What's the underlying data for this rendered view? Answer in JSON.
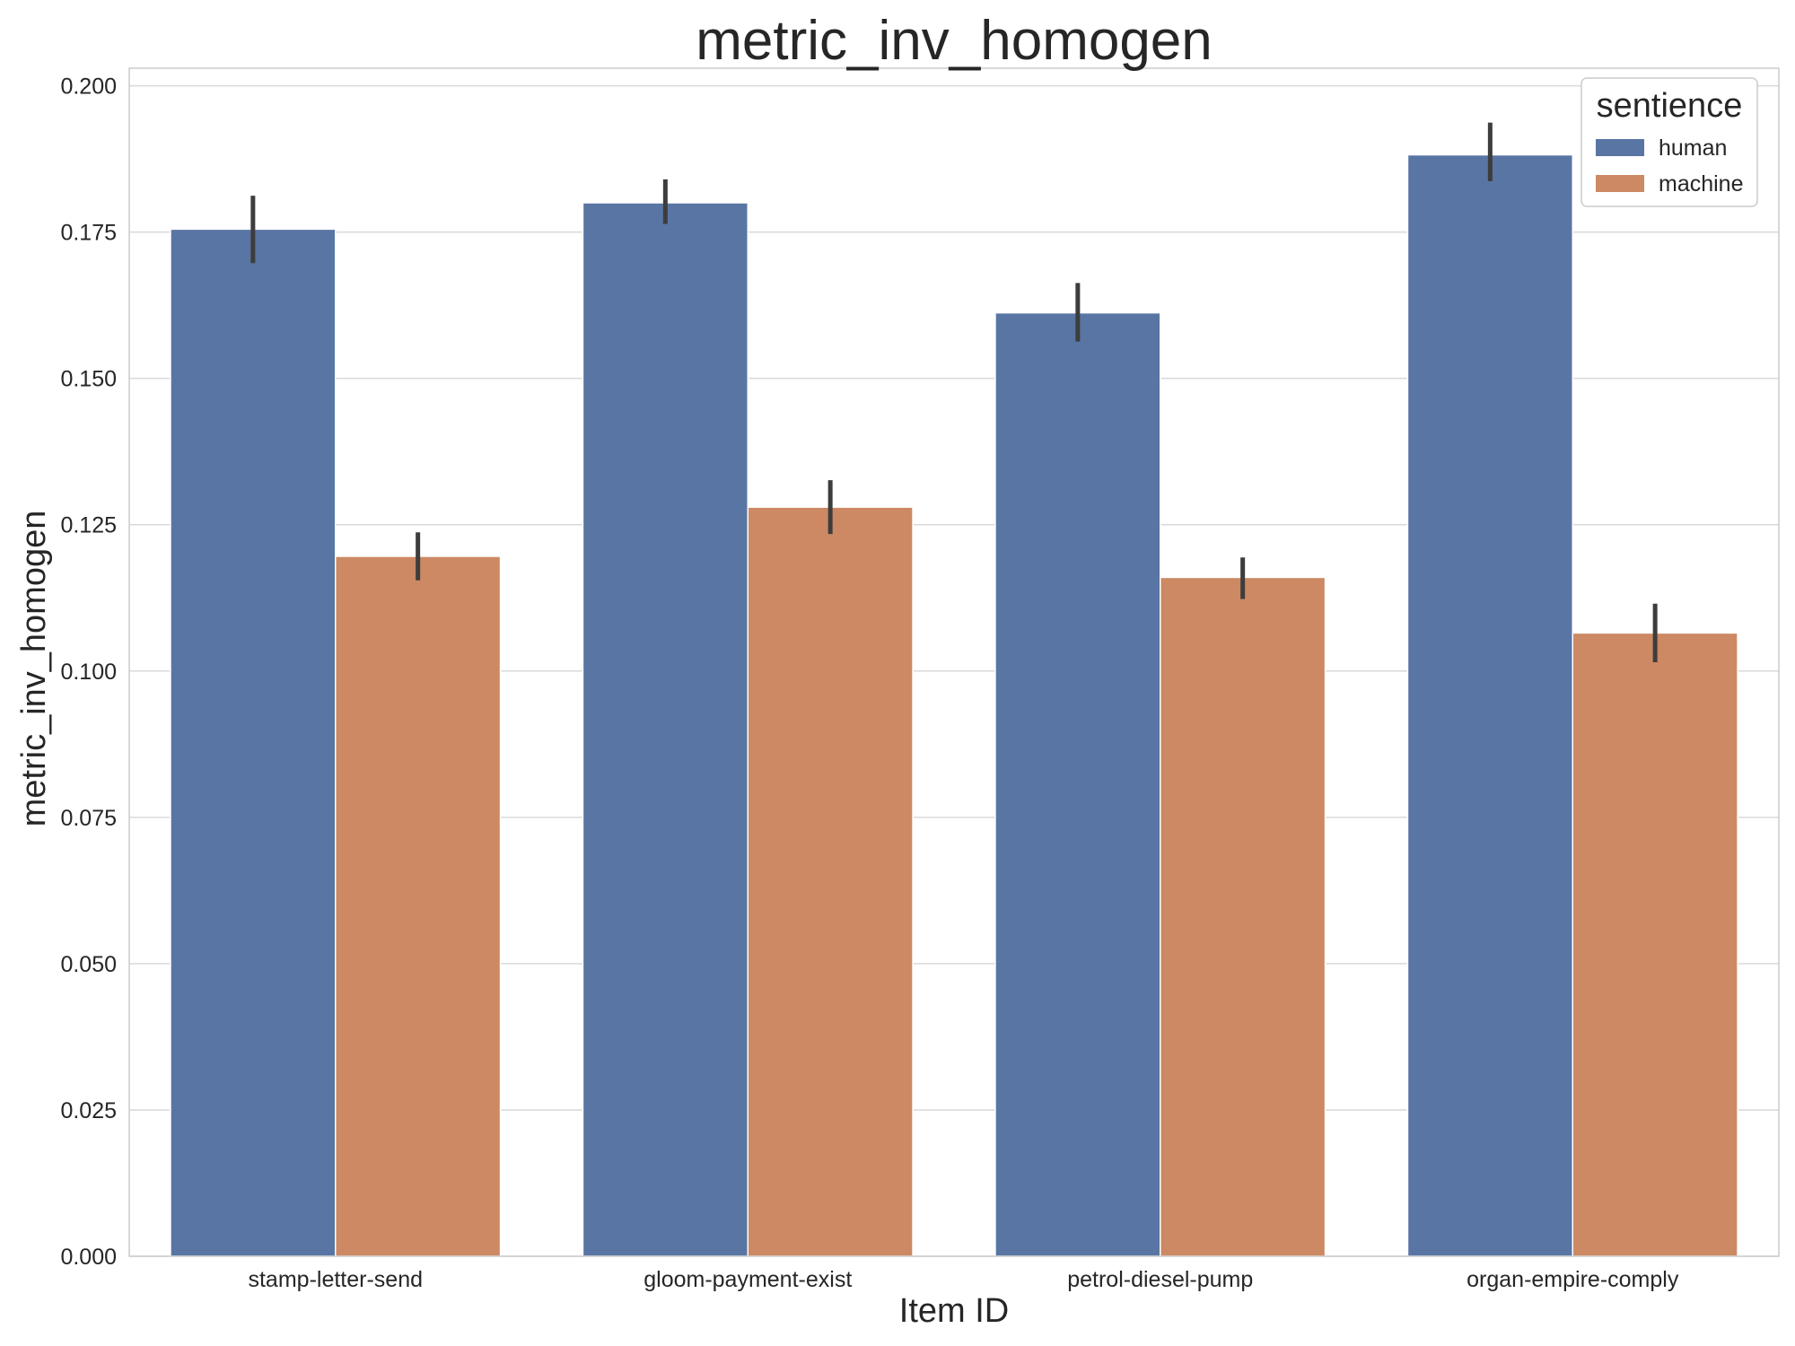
{
  "chart_data": {
    "type": "bar",
    "title": "metric_inv_homogen",
    "xlabel": "Item ID",
    "ylabel": "metric_inv_homogen",
    "categories": [
      "stamp-letter-send",
      "gloom-payment-exist",
      "petrol-diesel-pump",
      "organ-empire-comply"
    ],
    "series": [
      {
        "name": "human",
        "color": "#5975a4",
        "values": [
          0.1755,
          0.18,
          0.1612,
          0.1882
        ],
        "error_low": [
          0.1697,
          0.1764,
          0.1563,
          0.1837
        ],
        "error_high": [
          0.1812,
          0.184,
          0.1663,
          0.1937
        ]
      },
      {
        "name": "machine",
        "color": "#cc8963",
        "values": [
          0.1196,
          0.128,
          0.116,
          0.1065
        ],
        "error_low": [
          0.1155,
          0.1234,
          0.1123,
          0.1015
        ],
        "error_high": [
          0.1237,
          0.1326,
          0.1194,
          0.1115
        ]
      }
    ],
    "ylim": [
      0,
      0.203
    ],
    "yticks": [
      "0.000",
      "0.025",
      "0.050",
      "0.075",
      "0.100",
      "0.125",
      "0.150",
      "0.175",
      "0.200"
    ],
    "grid": true,
    "legend": {
      "title": "sentience",
      "position": "top-right"
    }
  }
}
